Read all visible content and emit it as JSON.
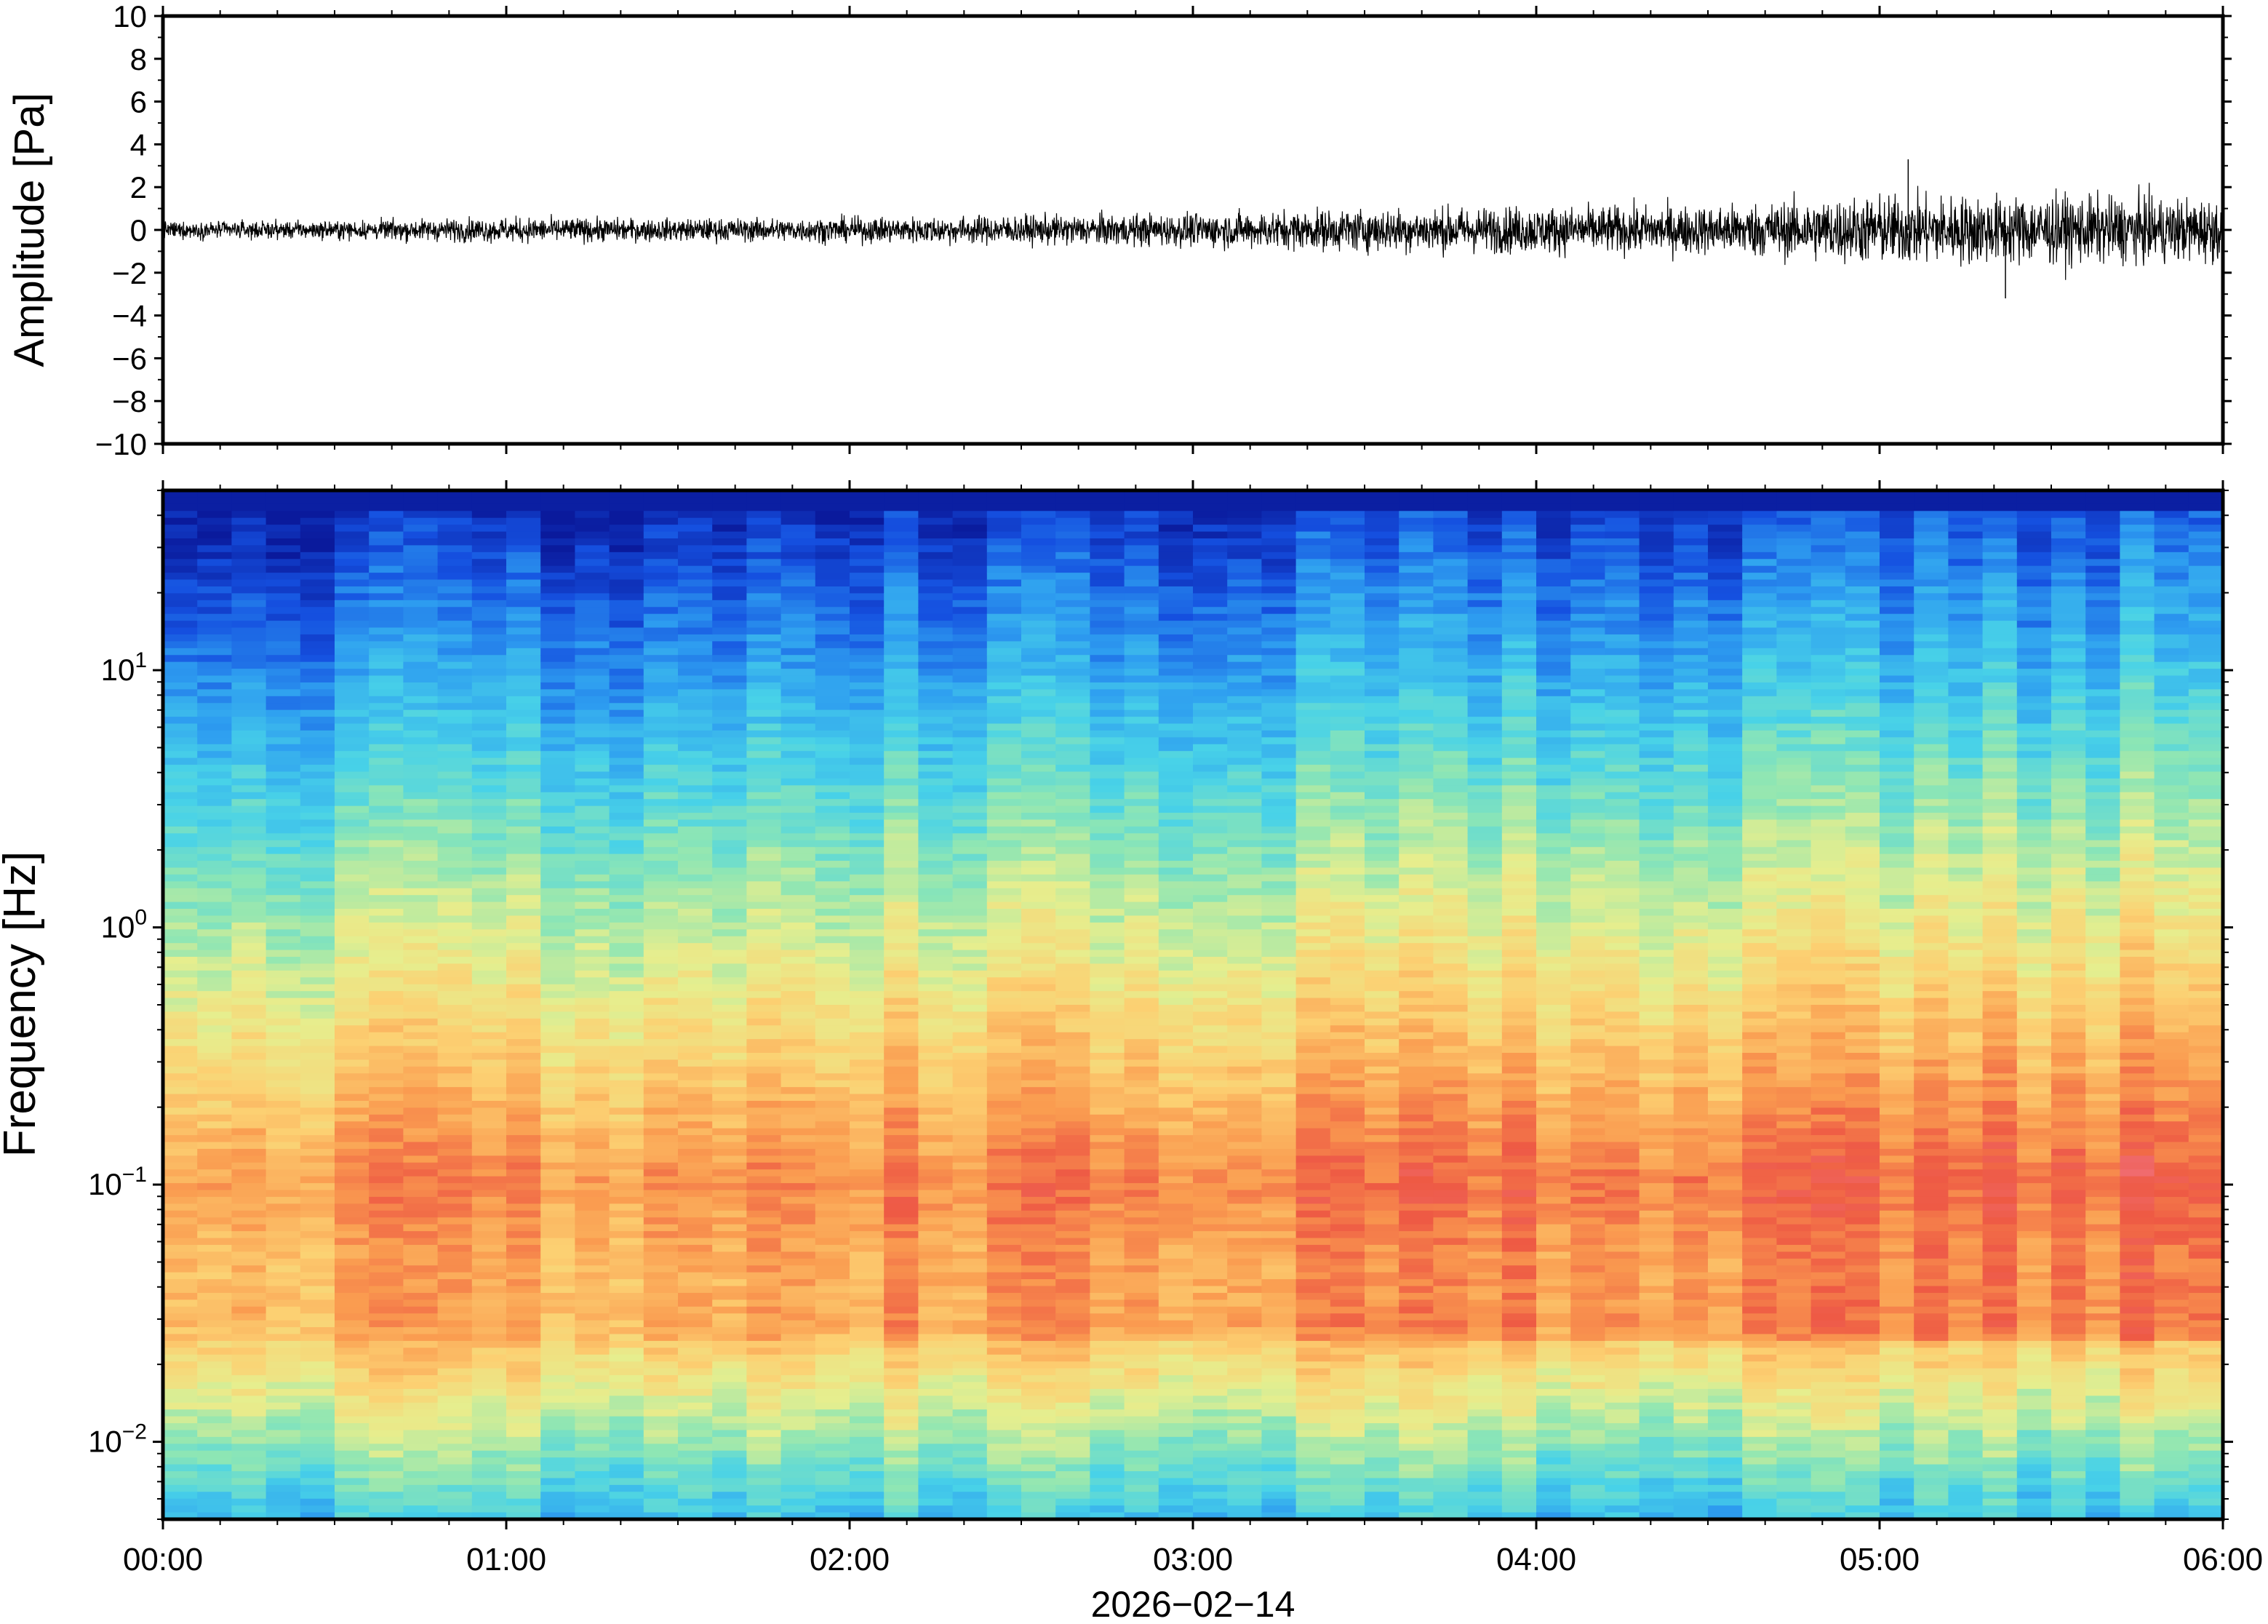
{
  "chart_data": [
    {
      "type": "line",
      "panel": "waveform",
      "ylabel": "Amplitude [Pa]",
      "ylim": [
        -10,
        10
      ],
      "yticks": [
        10,
        8,
        6,
        4,
        2,
        0,
        -2,
        -4,
        -6,
        -8,
        -10
      ],
      "ytick_labels": [
        "10",
        "8",
        "6",
        "4",
        "2",
        "0",
        "−2",
        "−4",
        "−6",
        "−8",
        "−10"
      ],
      "xlim": [
        "00:00",
        "06:00"
      ],
      "series": [
        {
          "x_hours": [
            0,
            0.5,
            1,
            1.5,
            2,
            2.5,
            3,
            3.5,
            4,
            4.5,
            5,
            5.5,
            6
          ],
          "envelope_max_pa": [
            0.6,
            0.7,
            0.9,
            0.8,
            0.9,
            1.1,
            1.2,
            1.5,
            1.6,
            1.7,
            2.6,
            2.4,
            2.2
          ],
          "envelope_min_pa": [
            -0.6,
            -0.6,
            -0.9,
            -0.8,
            -0.9,
            -1.0,
            -1.2,
            -1.6,
            -1.8,
            -1.8,
            -2.4,
            -2.6,
            -2.3
          ]
        }
      ],
      "notable_peaks": [
        {
          "time": "05:05",
          "value_pa": 3.3
        },
        {
          "time": "05:22",
          "value_pa": -3.2
        }
      ]
    },
    {
      "type": "heatmap",
      "panel": "spectrogram",
      "ylabel": "Frequency [Hz]",
      "y_scale": "log",
      "ylim_hz": [
        0.005,
        50
      ],
      "yticks_hz": [
        10,
        1,
        0.1,
        0.01
      ],
      "ytick_labels": [
        {
          "base": "10",
          "exp": "1"
        },
        {
          "base": "10",
          "exp": "0"
        },
        {
          "base": "10",
          "exp": "−1"
        },
        {
          "base": "10",
          "exp": "−2"
        }
      ],
      "xlabel": "2026−02−14",
      "xticks": [
        "00:00",
        "01:00",
        "02:00",
        "03:00",
        "04:00",
        "05:00",
        "06:00"
      ],
      "colormap": [
        "#0a1a9c",
        "#1550e0",
        "#2e9ef0",
        "#48d2e8",
        "#8ee6b4",
        "#e6ee8e",
        "#fcd072",
        "#fa9c50",
        "#ee5a44",
        "#f0707c"
      ],
      "time_columns": 60,
      "time_hours_start": 0,
      "time_hours_end": 6
    }
  ]
}
